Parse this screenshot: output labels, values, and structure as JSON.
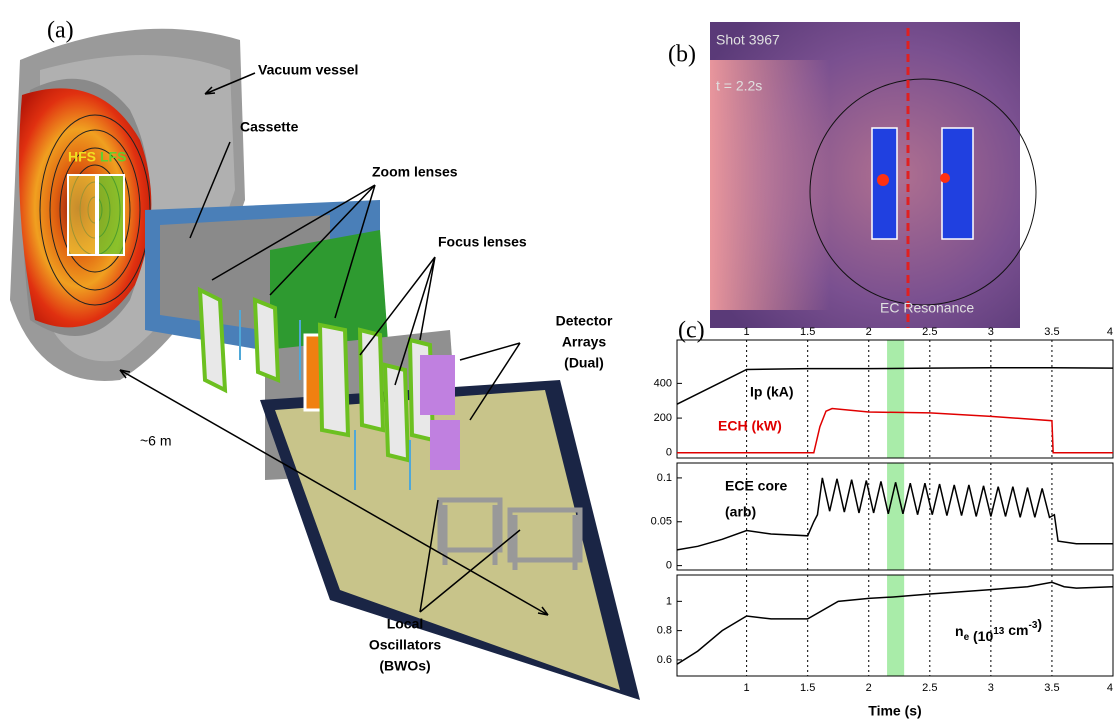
{
  "panel_a": {
    "label": "(a)",
    "vessel": "Vacuum vessel",
    "cassette": "Cassette",
    "zoom": "Zoom lenses",
    "focus": "Focus lenses",
    "detector": [
      "Detector",
      "Arrays",
      "(Dual)"
    ],
    "distance": "~6 m",
    "oscillators": [
      "Local",
      "Oscillators",
      "(BWOs)"
    ],
    "hfs": "HFS",
    "lfs": "LFS"
  },
  "panel_b": {
    "label": "(b)",
    "shot": "Shot 3967",
    "time": "t = 2.2s",
    "resonance": "EC Resonance"
  },
  "panel_c": {
    "label": "(c)",
    "xlabel": "Time (s)",
    "highlight": [
      2.15,
      2.29
    ]
  },
  "chart_data": [
    {
      "type": "line",
      "xlim": [
        0.43,
        4.0
      ],
      "ylim": [
        -30,
        650
      ],
      "yticks": [
        0,
        200,
        400
      ],
      "xticks": [
        1,
        1.5,
        2,
        2.5,
        3,
        3.5,
        4
      ],
      "xtick_labels": "top",
      "series": [
        {
          "name": "Ip (kA)",
          "color": "#000000",
          "x": [
            0.43,
            1.0,
            1.5,
            2.0,
            2.5,
            3.0,
            3.5,
            4.0
          ],
          "values": [
            280,
            480,
            485,
            485,
            488,
            490,
            490,
            488
          ]
        },
        {
          "name": "ECH (kW)",
          "color": "#e00000",
          "x": [
            0.43,
            1.55,
            1.6,
            1.65,
            1.7,
            2.0,
            2.5,
            3.0,
            3.5,
            3.51,
            4.0
          ],
          "values": [
            0,
            0,
            150,
            240,
            255,
            235,
            230,
            210,
            185,
            0,
            0
          ]
        }
      ]
    },
    {
      "type": "line",
      "xlim": [
        0.43,
        4.0
      ],
      "ylim": [
        -0.005,
        0.117
      ],
      "yticks": [
        0,
        0.05,
        0.1
      ],
      "xticks": [
        1,
        1.5,
        2,
        2.5,
        3,
        3.5,
        4
      ],
      "xtick_labels": "none",
      "series": [
        {
          "name": [
            "ECE core",
            "(arb)"
          ],
          "color": "#000000",
          "x": [
            0.43,
            0.6,
            0.8,
            1.0,
            1.2,
            1.5,
            1.55,
            1.58,
            1.62,
            1.68,
            1.74,
            1.8,
            1.86,
            1.92,
            1.98,
            2.04,
            2.1,
            2.16,
            2.22,
            2.28,
            2.34,
            2.4,
            2.46,
            2.52,
            2.58,
            2.64,
            2.7,
            2.76,
            2.82,
            2.88,
            2.94,
            3.0,
            3.06,
            3.12,
            3.18,
            3.24,
            3.3,
            3.36,
            3.42,
            3.48,
            3.52,
            3.55,
            3.7,
            4.0
          ],
          "values": [
            0.018,
            0.022,
            0.03,
            0.04,
            0.036,
            0.034,
            0.05,
            0.058,
            0.1,
            0.062,
            0.099,
            0.061,
            0.098,
            0.06,
            0.097,
            0.06,
            0.096,
            0.059,
            0.095,
            0.059,
            0.094,
            0.058,
            0.094,
            0.058,
            0.093,
            0.057,
            0.092,
            0.057,
            0.092,
            0.056,
            0.091,
            0.056,
            0.09,
            0.056,
            0.09,
            0.055,
            0.089,
            0.055,
            0.088,
            0.055,
            0.058,
            0.028,
            0.025,
            0.025
          ]
        }
      ]
    },
    {
      "type": "line",
      "xlim": [
        0.43,
        4.0
      ],
      "ylim": [
        0.49,
        1.18
      ],
      "yticks": [
        0.6,
        0.8,
        1
      ],
      "xticks": [
        1,
        1.5,
        2,
        2.5,
        3,
        3.5,
        4
      ],
      "xtick_labels": "bottom",
      "series": [
        {
          "name": [
            "n",
            "e",
            " (10",
            "13",
            " cm",
            "-3",
            ")"
          ],
          "name_style": [
            "",
            "sub",
            "",
            "sup",
            "",
            "sup",
            ""
          ],
          "color": "#000000",
          "x": [
            0.43,
            0.6,
            0.8,
            1.0,
            1.2,
            1.5,
            1.75,
            2.0,
            2.2,
            2.5,
            3.0,
            3.3,
            3.5,
            3.6,
            3.7,
            4.0
          ],
          "values": [
            0.57,
            0.66,
            0.8,
            0.9,
            0.88,
            0.88,
            1.0,
            1.02,
            1.03,
            1.05,
            1.08,
            1.1,
            1.13,
            1.1,
            1.09,
            1.1
          ]
        }
      ]
    }
  ]
}
